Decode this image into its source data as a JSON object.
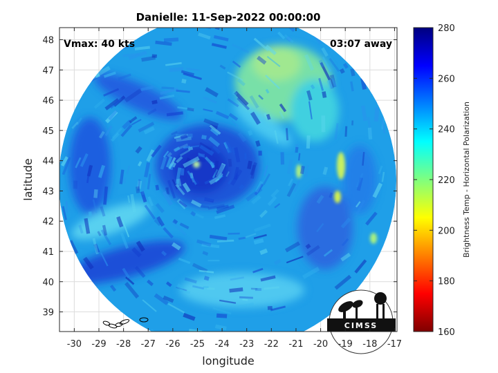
{
  "chart_data": {
    "type": "heatmap",
    "title": "Danielle: 11-Sep-2022 00:00:00",
    "xlabel": "longitude",
    "ylabel": "latitude",
    "xlim": [
      -30.6,
      -16.9
    ],
    "ylim": [
      38.35,
      48.4
    ],
    "xticks": [
      -30,
      -29,
      -28,
      -27,
      -26,
      -25,
      -24,
      -23,
      -22,
      -21,
      -20,
      -19,
      -18,
      -17
    ],
    "yticks": [
      39,
      40,
      41,
      42,
      43,
      44,
      45,
      46,
      47,
      48
    ],
    "grid": true,
    "annotations": {
      "vmax": "Vmax: 40 kts",
      "time_away": "03:07 away"
    },
    "colorbar": {
      "label": "Brightness Temp - Horizontal Polarization",
      "min": 160,
      "max": 280,
      "ticks": [
        160,
        180,
        200,
        220,
        240,
        260,
        280
      ],
      "colormap": "jet"
    },
    "storm_center": {
      "lon": -24.8,
      "lat": 43.7
    },
    "swath": {
      "center_lon": -23.8,
      "center_lat": 43.3,
      "radius_deg_lon": 6.4,
      "radius_deg_lat": 5.1
    }
  },
  "logo": {
    "text": "CIMSS"
  }
}
